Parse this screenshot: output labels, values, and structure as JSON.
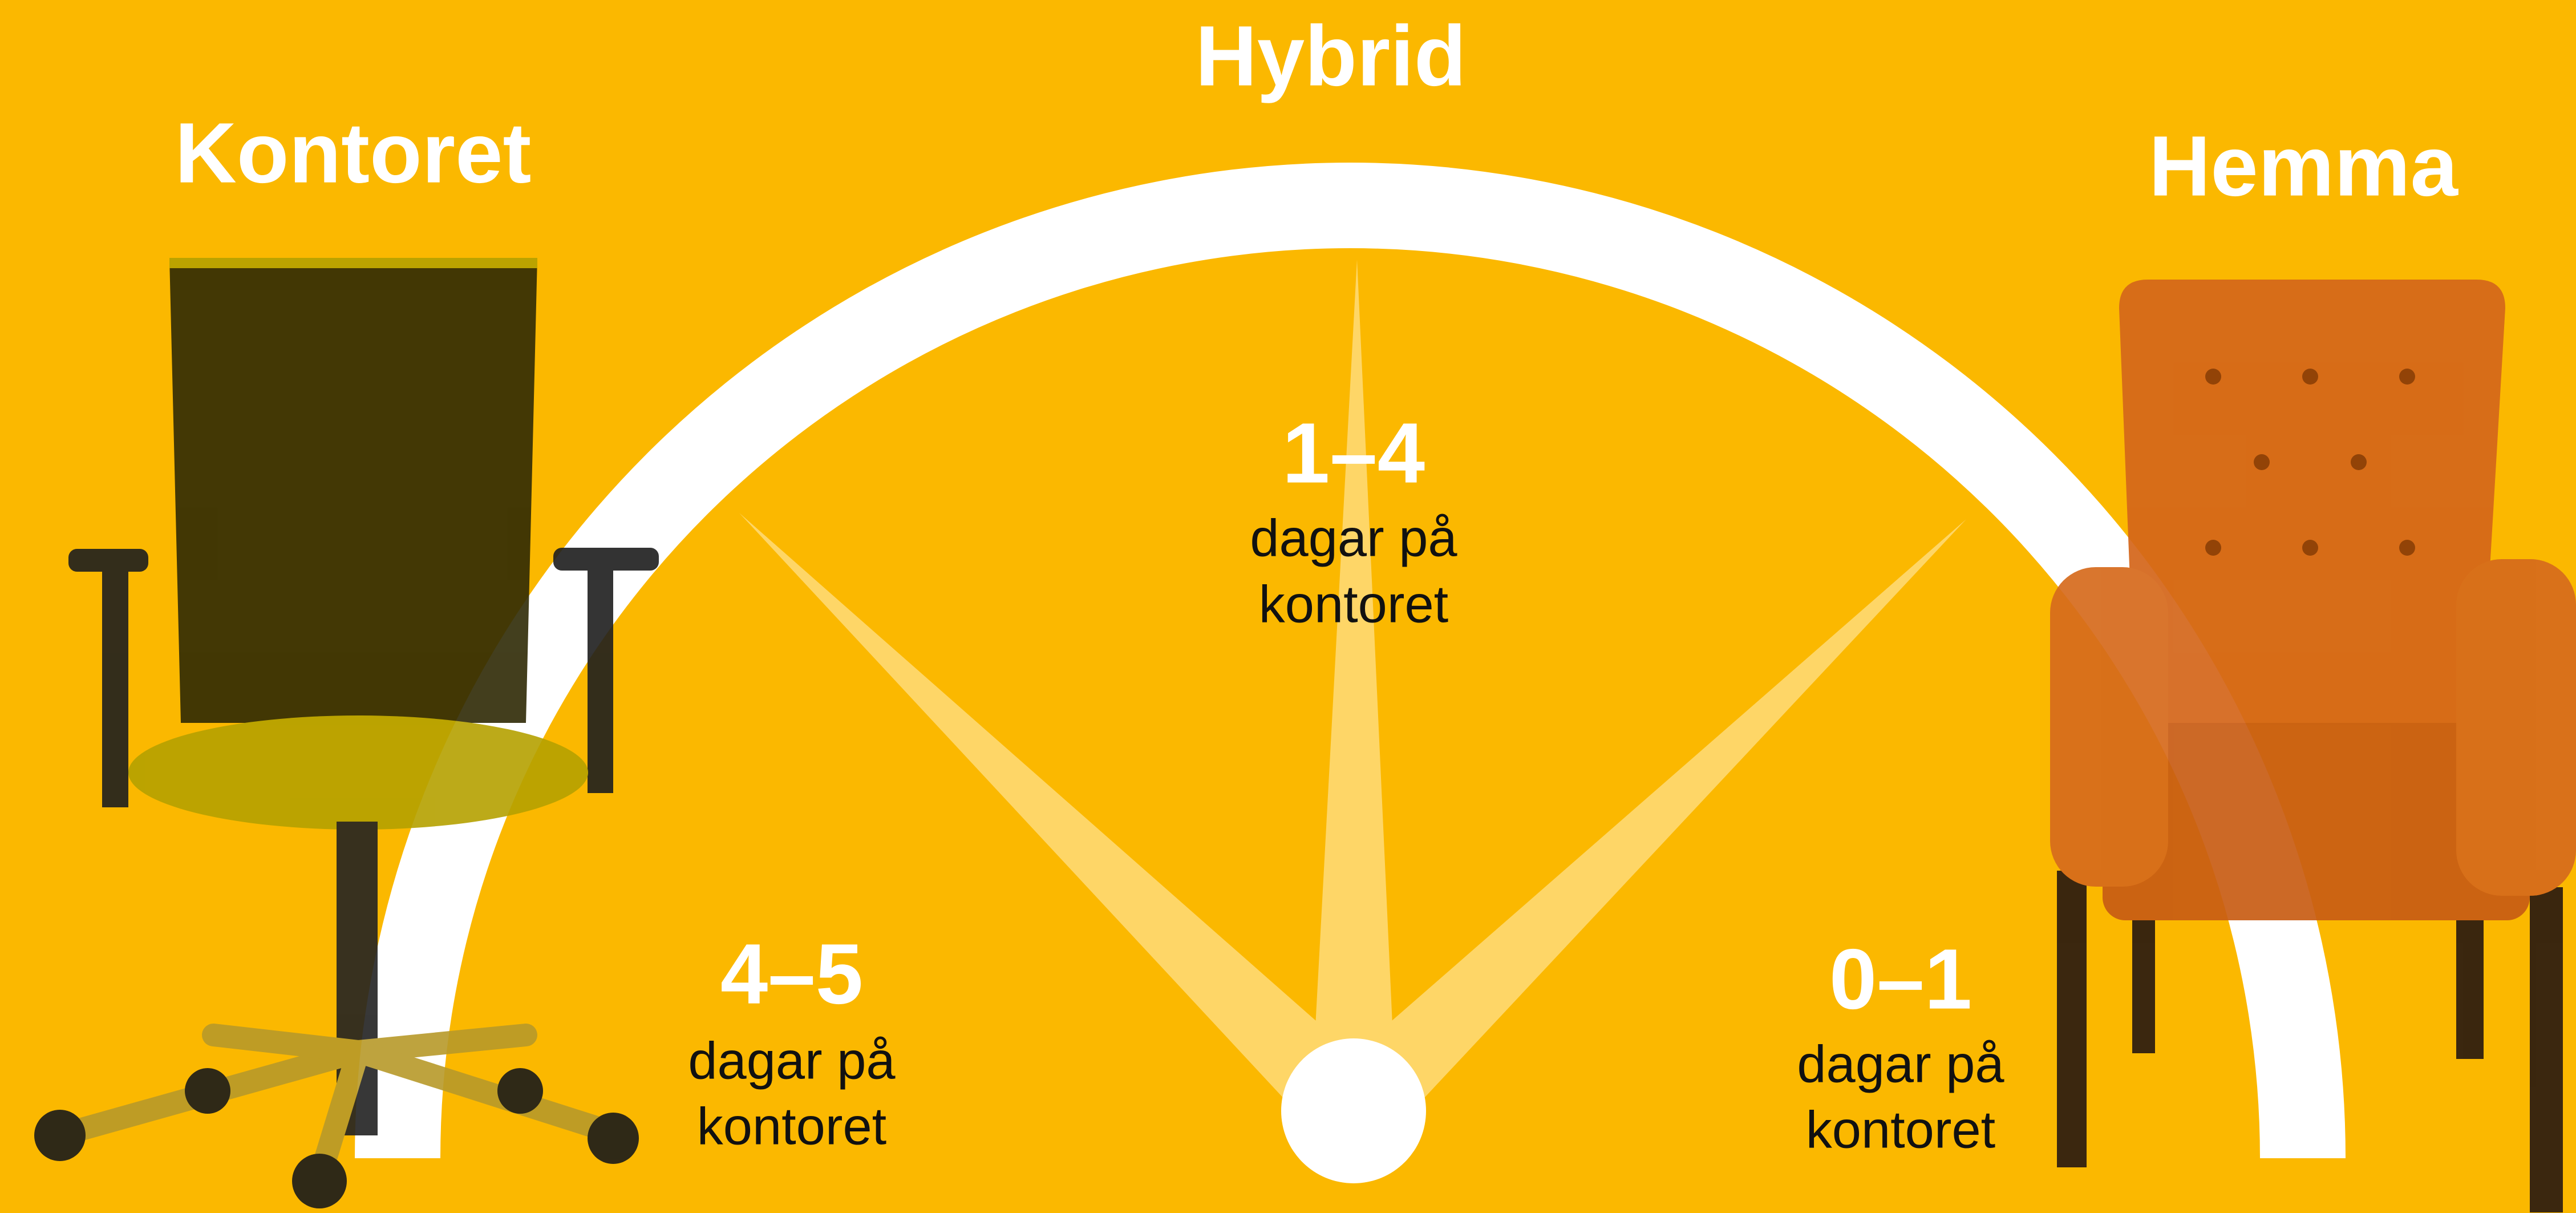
{
  "zones": [
    "Kontoret",
    "Hybrid",
    "Hemma"
  ],
  "ranges": [
    {
      "days": "4–5",
      "caption": [
        "dagar på",
        "kontoret"
      ]
    },
    {
      "days": "1–4",
      "caption": [
        "dagar på",
        "kontoret"
      ]
    },
    {
      "days": "0–1",
      "caption": [
        "dagar på",
        "kontoret"
      ]
    }
  ]
}
